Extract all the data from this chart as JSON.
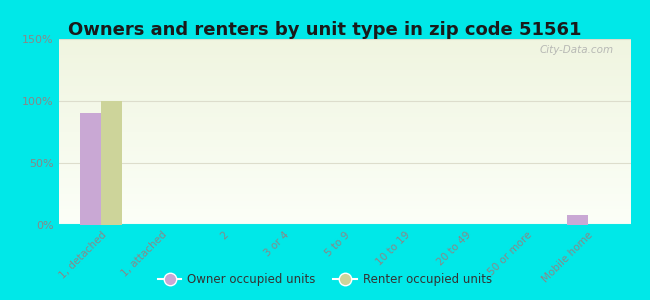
{
  "title": "Owners and renters by unit type in zip code 51561",
  "categories": [
    "1, detached",
    "1, attached",
    "2",
    "3 or 4",
    "5 to 9",
    "10 to 19",
    "20 to 49",
    "50 or more",
    "Mobile home"
  ],
  "owner_values": [
    90,
    0,
    0,
    0,
    0,
    0,
    0,
    0,
    8
  ],
  "renter_values": [
    100,
    0,
    0,
    0,
    0,
    0,
    0,
    0,
    0
  ],
  "owner_color": "#c9a8d4",
  "renter_color": "#cdd49a",
  "background_color": "#00e8e8",
  "plot_bg_top": "#f0f5e0",
  "plot_bg_bottom": "#ffffff",
  "ylim": [
    0,
    150
  ],
  "yticks": [
    0,
    50,
    100,
    150
  ],
  "ytick_labels": [
    "0%",
    "50%",
    "100%",
    "150%"
  ],
  "bar_width": 0.35,
  "title_fontsize": 13,
  "legend_owner": "Owner occupied units",
  "legend_renter": "Renter occupied units",
  "watermark": "City-Data.com",
  "tick_color": "#888888",
  "grid_color": "#ddddcc"
}
